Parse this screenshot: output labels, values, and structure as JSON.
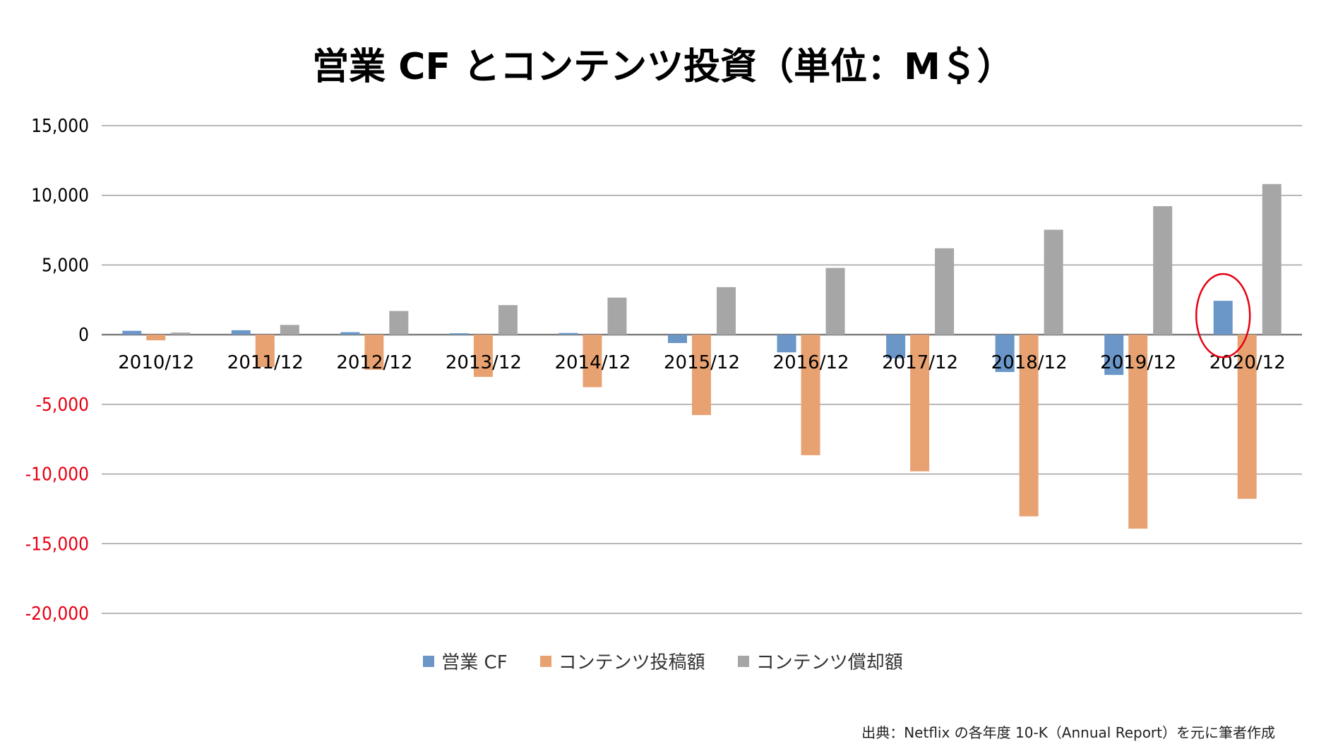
{
  "chart_data": {
    "type": "bar",
    "title": "営業 CF とコンテンツ投資（単位：M＄）",
    "xlabel": "",
    "ylabel": "",
    "ylim": [
      -20000,
      15000
    ],
    "yticks": [
      15000,
      10000,
      5000,
      0,
      -5000,
      -10000,
      -15000,
      -20000
    ],
    "ytick_labels": [
      "15,000",
      "10,000",
      "5,000",
      "0",
      "-5,000",
      "-10,000",
      "-15,000",
      "-20,000"
    ],
    "negative_tick_color": "#e60012",
    "grid": true,
    "legend_placement": "bottom",
    "categories": [
      "2010/12",
      "2011/12",
      "2012/12",
      "2013/12",
      "2014/12",
      "2015/12",
      "2016/12",
      "2017/12",
      "2018/12",
      "2019/12",
      "2020/12"
    ],
    "series": [
      {
        "name": "営業 CF",
        "color": "#6a96c8",
        "values": [
          276,
          318,
          180,
          100,
          120,
          -600,
          -1270,
          -1700,
          -2680,
          -2890,
          2430
        ]
      },
      {
        "name": "コンテンツ投稿額",
        "color": "#e8a272",
        "values": [
          -406,
          -2320,
          -2520,
          -3030,
          -3770,
          -5770,
          -8650,
          -9810,
          -13040,
          -13920,
          -11780
        ]
      },
      {
        "name": "コンテンツ償却額",
        "color": "#a6a6a6",
        "values": [
          150,
          700,
          1700,
          2120,
          2660,
          3410,
          4790,
          6200,
          7530,
          9220,
          10810
        ]
      }
    ],
    "annotation": {
      "type": "ellipse",
      "color": "#e60012",
      "category": "2020/12",
      "series": "営業 CF"
    }
  },
  "footer": "出典：Netflix の各年度 10-K（Annual Report）を元に筆者作成"
}
